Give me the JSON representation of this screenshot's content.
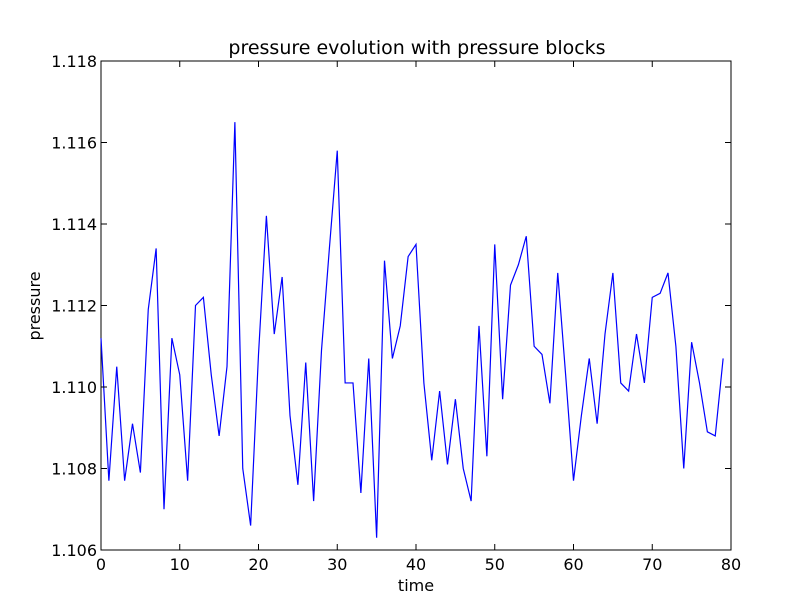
{
  "chart_data": {
    "type": "line",
    "title": "pressure evolution with pressure blocks",
    "xlabel": "time",
    "ylabel": "pressure",
    "xlim": [
      0,
      80
    ],
    "ylim": [
      1.106,
      1.118
    ],
    "xticks": [
      0,
      10,
      20,
      30,
      40,
      50,
      60,
      70,
      80
    ],
    "xtick_labels": [
      "0",
      "10",
      "20",
      "30",
      "40",
      "50",
      "60",
      "70",
      "80"
    ],
    "yticks": [
      1.106,
      1.108,
      1.11,
      1.112,
      1.114,
      1.116,
      1.118
    ],
    "ytick_labels": [
      "1.106",
      "1.108",
      "1.110",
      "1.112",
      "1.114",
      "1.116",
      "1.118"
    ],
    "grid": false,
    "line_color": "#0000ff",
    "series": [
      {
        "x": [
          0,
          1,
          2,
          3,
          4,
          5,
          6,
          7,
          8,
          9,
          10,
          11,
          12,
          13,
          14,
          15,
          16,
          17,
          18,
          19,
          20,
          21,
          22,
          23,
          24,
          25,
          26,
          27,
          28,
          29,
          30,
          31,
          32,
          33,
          34,
          35,
          36,
          37,
          38,
          39,
          40,
          41,
          42,
          43,
          44,
          45,
          46,
          47,
          48,
          49,
          50,
          51,
          52,
          53,
          54,
          55,
          56,
          57,
          58,
          59,
          60,
          61,
          62,
          63,
          64,
          65,
          66,
          67,
          68,
          69,
          70,
          71,
          72,
          73,
          74,
          75,
          76,
          77,
          78,
          79
        ],
        "y": [
          1.1112,
          1.1077,
          1.1105,
          1.1077,
          1.1091,
          1.1079,
          1.1119,
          1.1134,
          1.107,
          1.1112,
          1.1103,
          1.1077,
          1.112,
          1.1122,
          1.1103,
          1.1088,
          1.1105,
          1.1165,
          1.108,
          1.1066,
          1.1108,
          1.1142,
          1.1113,
          1.1127,
          1.1093,
          1.1076,
          1.1106,
          1.1072,
          1.1109,
          1.1134,
          1.1158,
          1.1101,
          1.1101,
          1.1074,
          1.1107,
          1.1063,
          1.1131,
          1.1107,
          1.1115,
          1.1132,
          1.1135,
          1.1101,
          1.1082,
          1.1099,
          1.1081,
          1.1097,
          1.108,
          1.1072,
          1.1115,
          1.1083,
          1.1135,
          1.1097,
          1.1125,
          1.113,
          1.1137,
          1.111,
          1.1108,
          1.1096,
          1.1128,
          1.1103,
          1.1077,
          1.1093,
          1.1107,
          1.1091,
          1.1113,
          1.1128,
          1.1101,
          1.1099,
          1.1113,
          1.1101,
          1.1122,
          1.1123,
          1.1128,
          1.111,
          1.108,
          1.1111,
          1.1101,
          1.1089,
          1.1088,
          1.1107
        ]
      }
    ]
  }
}
